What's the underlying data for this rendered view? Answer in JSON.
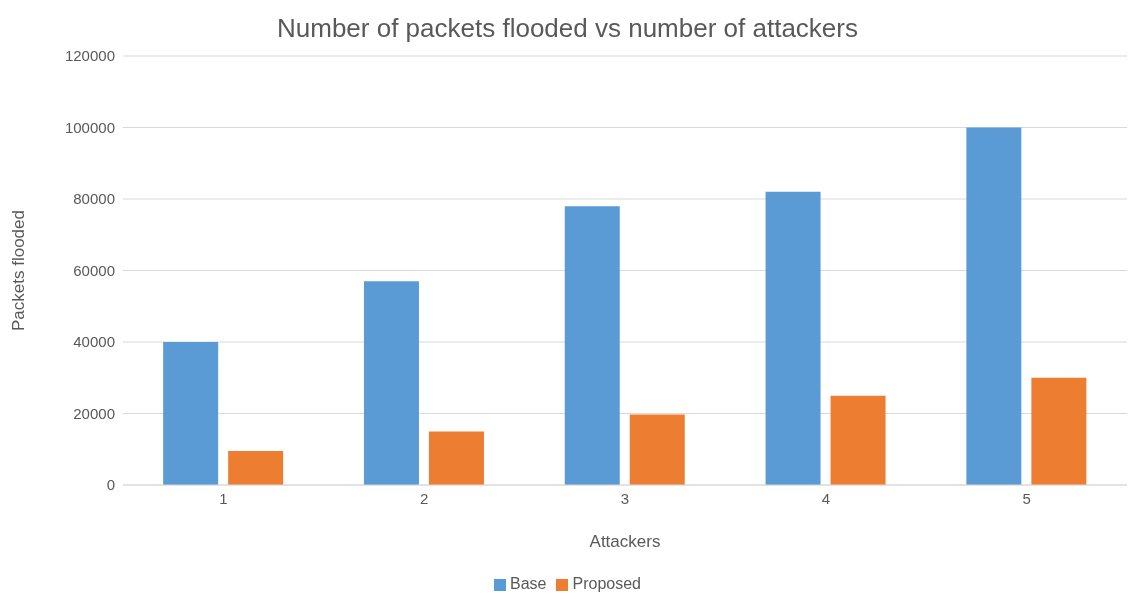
{
  "chart_data": {
    "type": "bar",
    "title": "Number of packets flooded vs number of attackers",
    "xlabel": "Attackers",
    "ylabel": "Packets flooded",
    "categories": [
      "1",
      "2",
      "3",
      "4",
      "5"
    ],
    "series": [
      {
        "name": "Base",
        "color": "#5b9bd5",
        "values": [
          40000,
          57000,
          78000,
          82000,
          100000
        ]
      },
      {
        "name": "Proposed",
        "color": "#ed7d31",
        "values": [
          9500,
          15000,
          19700,
          25000,
          30000
        ]
      }
    ],
    "ylim": [
      0,
      120000
    ],
    "yticks": [
      0,
      20000,
      40000,
      60000,
      80000,
      100000,
      120000
    ],
    "grid": "y",
    "legend": "bottom"
  }
}
